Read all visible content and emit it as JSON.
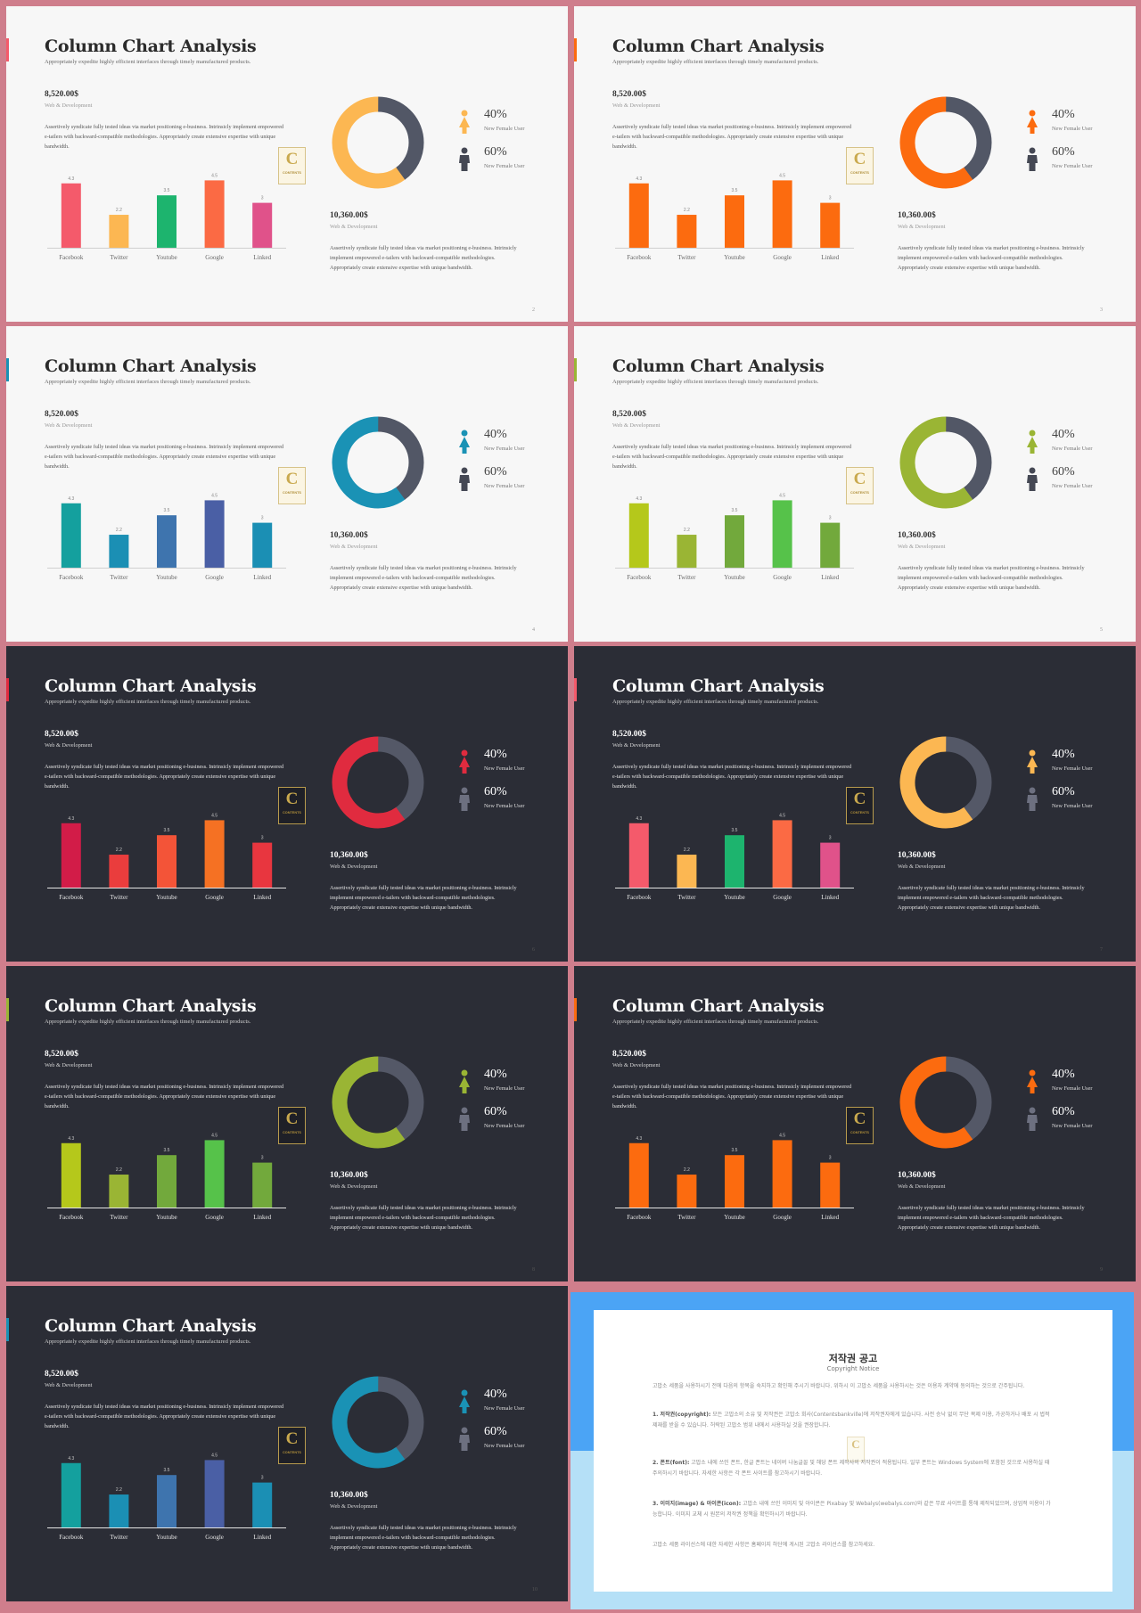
{
  "slide_text": {
    "title": "Column Chart Analysis",
    "subtitle": "Appropriately expedite highly efficient interfaces through timely manufactured products.",
    "left_amount": "8,520.00$",
    "left_caption": "Web & Development",
    "left_paragraph": "Assertively syndicate fully tested ideas via market positioning e-business. Intrinsicly implement empowered e-tailers with backward-compatible methodologies. Appropriately create extensive expertise with unique bandwidth.",
    "right_amount": "10,360.00$",
    "right_caption": "Web & Development",
    "right_paragraph": "Assertively syndicate fully tested ideas via market positioning e-business. Intrinsicly implement empowered e-tailers with backward-compatible methodologies. Appropriately create extensive expertise with unique bandwidth.",
    "legend_female_pct": "40%",
    "legend_female_label": "New Female User",
    "legend_male_pct": "60%",
    "legend_male_label": "New Female User",
    "logo_letter": "C",
    "logo_text": "CONTENTS"
  },
  "chart_data": {
    "type": "bar",
    "categories": [
      "Facebook",
      "Twitter",
      "Youtube",
      "Google",
      "Linked"
    ],
    "values": [
      4.3,
      2.2,
      3.5,
      4.5,
      3
    ],
    "value_labels": [
      "4.3",
      "2.2",
      "3.5",
      "4.5",
      "3"
    ],
    "donut": {
      "type": "pie",
      "highlight_share": 0.6,
      "rest_share": 0.4
    }
  },
  "slides": [
    {
      "theme": "light",
      "page": "2",
      "bar_colors": [
        "#f45a6b",
        "#fcb752",
        "#1db46e",
        "#fb6a44",
        "#e0528a"
      ],
      "donut_color": "#fcb752",
      "rest_color": "#525766",
      "icon_color": "#fcb752",
      "tab_color": "#f45a6b"
    },
    {
      "theme": "light",
      "page": "3",
      "bar_colors": [
        "#fc6b0f",
        "#fc6b0f",
        "#fc6b0f",
        "#fc6b0f",
        "#fc6b0f"
      ],
      "donut_color": "#fc6b0f",
      "rest_color": "#525766",
      "icon_color": "#fc6b0f",
      "tab_color": "#fc6b0f"
    },
    {
      "theme": "light",
      "page": "4",
      "bar_colors": [
        "#14a09e",
        "#1b8fb4",
        "#3e74ae",
        "#4a5fa5",
        "#1b8fb4"
      ],
      "donut_color": "#1a92b5",
      "rest_color": "#525766",
      "icon_color": "#1a92b5",
      "tab_color": "#1a92b5"
    },
    {
      "theme": "light",
      "page": "5",
      "bar_colors": [
        "#b5c81b",
        "#9ab534",
        "#72a93c",
        "#56c24a",
        "#72a93c"
      ],
      "donut_color": "#9ab534",
      "rest_color": "#525766",
      "icon_color": "#9ab534",
      "tab_color": "#9ab534"
    },
    {
      "theme": "dark",
      "page": "6",
      "bar_colors": [
        "#d21c48",
        "#ea3d3d",
        "#f35438",
        "#f57123",
        "#e8363f"
      ],
      "donut_color": "#e02b3f",
      "rest_color": "#545867",
      "icon_color": "#e02b3f",
      "tab_color": "#e02b3f"
    },
    {
      "theme": "dark",
      "page": "7",
      "bar_colors": [
        "#f45a6b",
        "#fcb752",
        "#1db46e",
        "#fb6a44",
        "#e0528a"
      ],
      "donut_color": "#fcb752",
      "rest_color": "#545867",
      "icon_color": "#fcb752",
      "tab_color": "#f45a6b"
    },
    {
      "theme": "dark",
      "page": "8",
      "bar_colors": [
        "#b5c81b",
        "#9ab534",
        "#72a93c",
        "#56c24a",
        "#72a93c"
      ],
      "donut_color": "#9ab534",
      "rest_color": "#545867",
      "icon_color": "#9ab534",
      "tab_color": "#9ab534"
    },
    {
      "theme": "dark",
      "page": "9",
      "bar_colors": [
        "#fc6b0f",
        "#fc6b0f",
        "#fc6b0f",
        "#fc6b0f",
        "#fc6b0f"
      ],
      "donut_color": "#fc6b0f",
      "rest_color": "#545867",
      "icon_color": "#fc6b0f",
      "tab_color": "#fc6b0f"
    },
    {
      "theme": "dark",
      "page": "10",
      "bar_colors": [
        "#14a09e",
        "#1b8fb4",
        "#3e74ae",
        "#4a5fa5",
        "#1b8fb4"
      ],
      "donut_color": "#1a92b5",
      "rest_color": "#545867",
      "icon_color": "#1a92b5",
      "tab_color": "#1a92b5"
    }
  ],
  "notice": {
    "title": "저작권 공고",
    "subtitle": "Copyright Notice",
    "intro": "고맙소 세품을 사용하시기 전에 다음의 항목을 숙지하고 확인해 주시기 바랍니다. 위하시 이 고맙소 세품을 사용하시는 것은 이용자 계약에 동의하는 것으로 간주됩니다.",
    "item1_head": "1. 저작권(copyright):",
    "item1_body": " 모든 고맙소의 소유 및 저작권은 고맙소 회사(Contentsbankville)에 저작권자에게 있습니다. 사전 승낙 없이 무단 복제 이용, 가공하거나 배포 시 법적 제재를 받을 수 있습니다. 허락된 고맙소 범위 내에서 사용하실 것을 권장합니다.",
    "item2_head": "2. 폰트(font):",
    "item2_body": " 고맙소 내에 쓰인 폰트, 한글 폰트는 네이버 나눔글꼴 및 해당 폰트 제작사의 저작권이 적용됩니다. 일부 폰트는 Windows System에 포함된 것으로 사용하실 때 주의하시기 바랍니다. 자세한 사항은 각 폰트 사이트를 참고하시기 바랍니다.",
    "item3_head": "3. 이미지(image) & 아이콘(icon):",
    "item3_body": " 고맙소 내에 쓰인 이미지 및 아이콘은 Pixabay 및 Webalys(webalys.com)와 같은 무료 사이트를 통해 제작되었으며, 상업적 이용이 가능합니다. 이미지 교체 시 원본의 저작권 정책을 확인하시기 바랍니다.",
    "outro": "고맙소 세품 라이선스에 대한 자세한 사항은 홈페이지 하단에 게시된 고맙소 라이선스를 참고하세요."
  }
}
